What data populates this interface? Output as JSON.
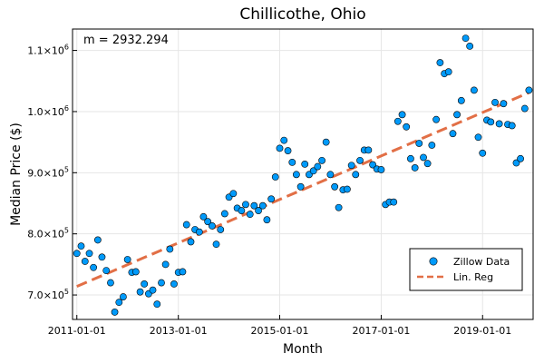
{
  "chart_data": {
    "type": "scatter",
    "title": "Chillicothe, Ohio",
    "xlabel": "Month",
    "ylabel": "Median Price ($)",
    "annotation": "m = 2932.294",
    "x_axis": {
      "type": "date",
      "range": [
        "2010-12-01",
        "2019-12-31"
      ],
      "ticks": [
        "2011-01-01",
        "2013-01-01",
        "2015-01-01",
        "2017-01-01",
        "2019-01-01"
      ]
    },
    "y_axis": {
      "range": [
        660000,
        1135000
      ],
      "ticks": [
        {
          "value": 700000,
          "mantissa": "7.0",
          "exp": "5"
        },
        {
          "value": 800000,
          "mantissa": "8.0",
          "exp": "5"
        },
        {
          "value": 900000,
          "mantissa": "9.0",
          "exp": "5"
        },
        {
          "value": 1000000,
          "mantissa": "1.0",
          "exp": "6"
        },
        {
          "value": 1100000,
          "mantissa": "1.1",
          "exp": "6"
        }
      ]
    },
    "grid": true,
    "legend": {
      "position": "bottom-right",
      "entries": [
        {
          "label": "Zillow Data",
          "kind": "marker",
          "color": "#009AFA"
        },
        {
          "label": "Lin. Reg",
          "kind": "dashed-line",
          "color": "#E26F46"
        }
      ]
    },
    "series": [
      {
        "name": "Zillow Data",
        "color": "#009AFA",
        "points": [
          [
            "2011-01-01",
            768000
          ],
          [
            "2011-02-01",
            780000
          ],
          [
            "2011-03-01",
            755000
          ],
          [
            "2011-04-01",
            768000
          ],
          [
            "2011-05-01",
            745000
          ],
          [
            "2011-06-01",
            790000
          ],
          [
            "2011-07-01",
            762000
          ],
          [
            "2011-08-01",
            740000
          ],
          [
            "2011-09-01",
            720000
          ],
          [
            "2011-10-01",
            672000
          ],
          [
            "2011-11-01",
            688000
          ],
          [
            "2011-12-01",
            697000
          ],
          [
            "2012-01-01",
            758000
          ],
          [
            "2012-02-01",
            737000
          ],
          [
            "2012-03-01",
            738000
          ],
          [
            "2012-04-01",
            705000
          ],
          [
            "2012-05-01",
            718000
          ],
          [
            "2012-06-01",
            702000
          ],
          [
            "2012-07-01",
            708000
          ],
          [
            "2012-08-01",
            685000
          ],
          [
            "2012-09-01",
            720000
          ],
          [
            "2012-10-01",
            750000
          ],
          [
            "2012-11-01",
            775000
          ],
          [
            "2012-12-01",
            718000
          ],
          [
            "2013-01-01",
            737000
          ],
          [
            "2013-02-01",
            738000
          ],
          [
            "2013-03-01",
            815000
          ],
          [
            "2013-04-01",
            787000
          ],
          [
            "2013-05-01",
            807000
          ],
          [
            "2013-06-01",
            803000
          ],
          [
            "2013-07-01",
            828000
          ],
          [
            "2013-08-01",
            820000
          ],
          [
            "2013-09-01",
            813000
          ],
          [
            "2013-10-01",
            783000
          ],
          [
            "2013-11-01",
            807000
          ],
          [
            "2013-12-01",
            833000
          ],
          [
            "2014-01-01",
            860000
          ],
          [
            "2014-02-01",
            866000
          ],
          [
            "2014-03-01",
            842000
          ],
          [
            "2014-04-01",
            838000
          ],
          [
            "2014-05-01",
            848000
          ],
          [
            "2014-06-01",
            832000
          ],
          [
            "2014-07-01",
            846000
          ],
          [
            "2014-08-01",
            838000
          ],
          [
            "2014-09-01",
            846000
          ],
          [
            "2014-10-01",
            823000
          ],
          [
            "2014-11-01",
            857000
          ],
          [
            "2014-12-01",
            893000
          ],
          [
            "2015-01-01",
            940000
          ],
          [
            "2015-02-01",
            953000
          ],
          [
            "2015-03-01",
            936000
          ],
          [
            "2015-04-01",
            917000
          ],
          [
            "2015-05-01",
            897000
          ],
          [
            "2015-06-01",
            877000
          ],
          [
            "2015-07-01",
            914000
          ],
          [
            "2015-08-01",
            897000
          ],
          [
            "2015-09-01",
            903000
          ],
          [
            "2015-10-01",
            910000
          ],
          [
            "2015-11-01",
            920000
          ],
          [
            "2015-12-01",
            950000
          ],
          [
            "2016-01-01",
            897000
          ],
          [
            "2016-02-01",
            877000
          ],
          [
            "2016-03-01",
            843000
          ],
          [
            "2016-04-01",
            872000
          ],
          [
            "2016-05-01",
            873000
          ],
          [
            "2016-06-01",
            912000
          ],
          [
            "2016-07-01",
            897000
          ],
          [
            "2016-08-01",
            920000
          ],
          [
            "2016-09-01",
            937000
          ],
          [
            "2016-10-01",
            937000
          ],
          [
            "2016-11-01",
            913000
          ],
          [
            "2016-12-01",
            906000
          ],
          [
            "2017-01-01",
            905000
          ],
          [
            "2017-02-01",
            848000
          ],
          [
            "2017-03-01",
            852000
          ],
          [
            "2017-04-01",
            852000
          ],
          [
            "2017-05-01",
            984000
          ],
          [
            "2017-06-01",
            995000
          ],
          [
            "2017-07-01",
            975000
          ],
          [
            "2017-08-01",
            923000
          ],
          [
            "2017-09-01",
            908000
          ],
          [
            "2017-10-01",
            948000
          ],
          [
            "2017-11-01",
            925000
          ],
          [
            "2017-12-01",
            915000
          ],
          [
            "2018-01-01",
            945000
          ],
          [
            "2018-02-01",
            987000
          ],
          [
            "2018-03-01",
            1080000
          ],
          [
            "2018-04-01",
            1062000
          ],
          [
            "2018-05-01",
            1065000
          ],
          [
            "2018-06-01",
            964000
          ],
          [
            "2018-07-01",
            995000
          ],
          [
            "2018-08-01",
            1018000
          ],
          [
            "2018-09-01",
            1120000
          ],
          [
            "2018-10-01",
            1107000
          ],
          [
            "2018-11-01",
            1035000
          ],
          [
            "2018-12-01",
            958000
          ],
          [
            "2019-01-01",
            932000
          ],
          [
            "2019-02-01",
            986000
          ],
          [
            "2019-03-01",
            983000
          ],
          [
            "2019-04-01",
            1015000
          ],
          [
            "2019-05-01",
            980000
          ],
          [
            "2019-06-01",
            1013000
          ],
          [
            "2019-07-01",
            979000
          ],
          [
            "2019-08-01",
            977000
          ],
          [
            "2019-09-01",
            916000
          ],
          [
            "2019-10-01",
            923000
          ],
          [
            "2019-11-01",
            1005000
          ],
          [
            "2019-12-01",
            1035000
          ]
        ]
      },
      {
        "name": "Lin. Reg",
        "color": "#E26F46",
        "style": "dashed",
        "points": [
          [
            "2011-01-01",
            714000
          ],
          [
            "2019-12-01",
            1031000
          ]
        ]
      }
    ]
  }
}
